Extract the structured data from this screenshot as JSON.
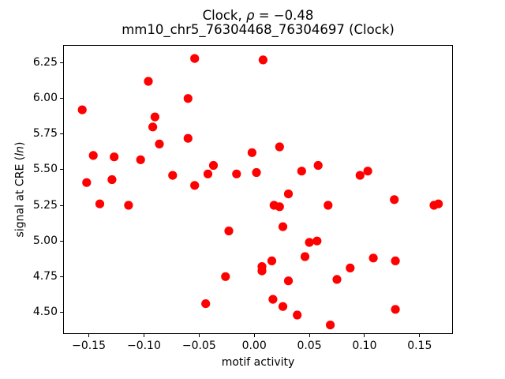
{
  "chart_data": {
    "type": "scatter",
    "title": "Clock, ρ = −0.48",
    "title_parts": {
      "prefix": "Clock, ",
      "rho": "ρ",
      "suffix": " = −0.48"
    },
    "subtitle": "mm10_chr5_76304468_76304697 (Clock)",
    "xlabel": "motif activity",
    "ylabel": "signal at CRE (ln)",
    "ylabel_parts": {
      "prefix": "signal at CRE (",
      "math": "ln",
      "suffix": ")"
    },
    "xlim": [
      -0.1733,
      0.1802
    ],
    "ylim": [
      4.347,
      6.375
    ],
    "x_ticks": [
      -0.15,
      -0.1,
      -0.05,
      0.0,
      0.05,
      0.1,
      0.15
    ],
    "x_tick_labels": [
      "−0.15",
      "−0.10",
      "−0.05",
      "0.00",
      "0.05",
      "0.10",
      "0.15"
    ],
    "y_ticks": [
      4.5,
      4.75,
      5.0,
      5.25,
      5.5,
      5.75,
      6.0,
      6.25
    ],
    "y_tick_labels": [
      "4.50",
      "4.75",
      "5.00",
      "5.25",
      "5.50",
      "5.75",
      "6.00",
      "6.25"
    ],
    "grid": false,
    "legend": null,
    "marker_color": "#ff0000",
    "marker_radius": 5.6,
    "points": [
      [
        -0.054,
        6.28
      ],
      [
        0.008,
        6.27
      ],
      [
        -0.096,
        6.12
      ],
      [
        -0.06,
        6.0
      ],
      [
        -0.156,
        5.92
      ],
      [
        -0.09,
        5.87
      ],
      [
        -0.092,
        5.8
      ],
      [
        -0.06,
        5.72
      ],
      [
        -0.086,
        5.68
      ],
      [
        0.023,
        5.66
      ],
      [
        -0.002,
        5.62
      ],
      [
        -0.146,
        5.6
      ],
      [
        -0.127,
        5.59
      ],
      [
        -0.103,
        5.57
      ],
      [
        0.058,
        5.53
      ],
      [
        -0.037,
        5.53
      ],
      [
        0.043,
        5.49
      ],
      [
        0.103,
        5.49
      ],
      [
        0.002,
        5.48
      ],
      [
        -0.016,
        5.47
      ],
      [
        -0.042,
        5.47
      ],
      [
        -0.074,
        5.46
      ],
      [
        0.096,
        5.46
      ],
      [
        -0.129,
        5.43
      ],
      [
        -0.152,
        5.41
      ],
      [
        -0.054,
        5.39
      ],
      [
        0.031,
        5.33
      ],
      [
        0.127,
        5.29
      ],
      [
        -0.14,
        5.26
      ],
      [
        0.167,
        5.26
      ],
      [
        -0.114,
        5.25
      ],
      [
        0.018,
        5.25
      ],
      [
        0.067,
        5.25
      ],
      [
        0.163,
        5.25
      ],
      [
        0.023,
        5.24
      ],
      [
        0.026,
        5.1
      ],
      [
        -0.023,
        5.07
      ],
      [
        0.057,
        5.0
      ],
      [
        0.05,
        4.99
      ],
      [
        0.046,
        4.89
      ],
      [
        0.108,
        4.88
      ],
      [
        0.016,
        4.86
      ],
      [
        0.128,
        4.86
      ],
      [
        0.007,
        4.82
      ],
      [
        0.087,
        4.81
      ],
      [
        0.007,
        4.79
      ],
      [
        -0.026,
        4.75
      ],
      [
        0.075,
        4.73
      ],
      [
        0.031,
        4.72
      ],
      [
        0.017,
        4.59
      ],
      [
        -0.044,
        4.56
      ],
      [
        0.026,
        4.54
      ],
      [
        0.128,
        4.52
      ],
      [
        0.039,
        4.48
      ],
      [
        0.069,
        4.41
      ]
    ]
  }
}
